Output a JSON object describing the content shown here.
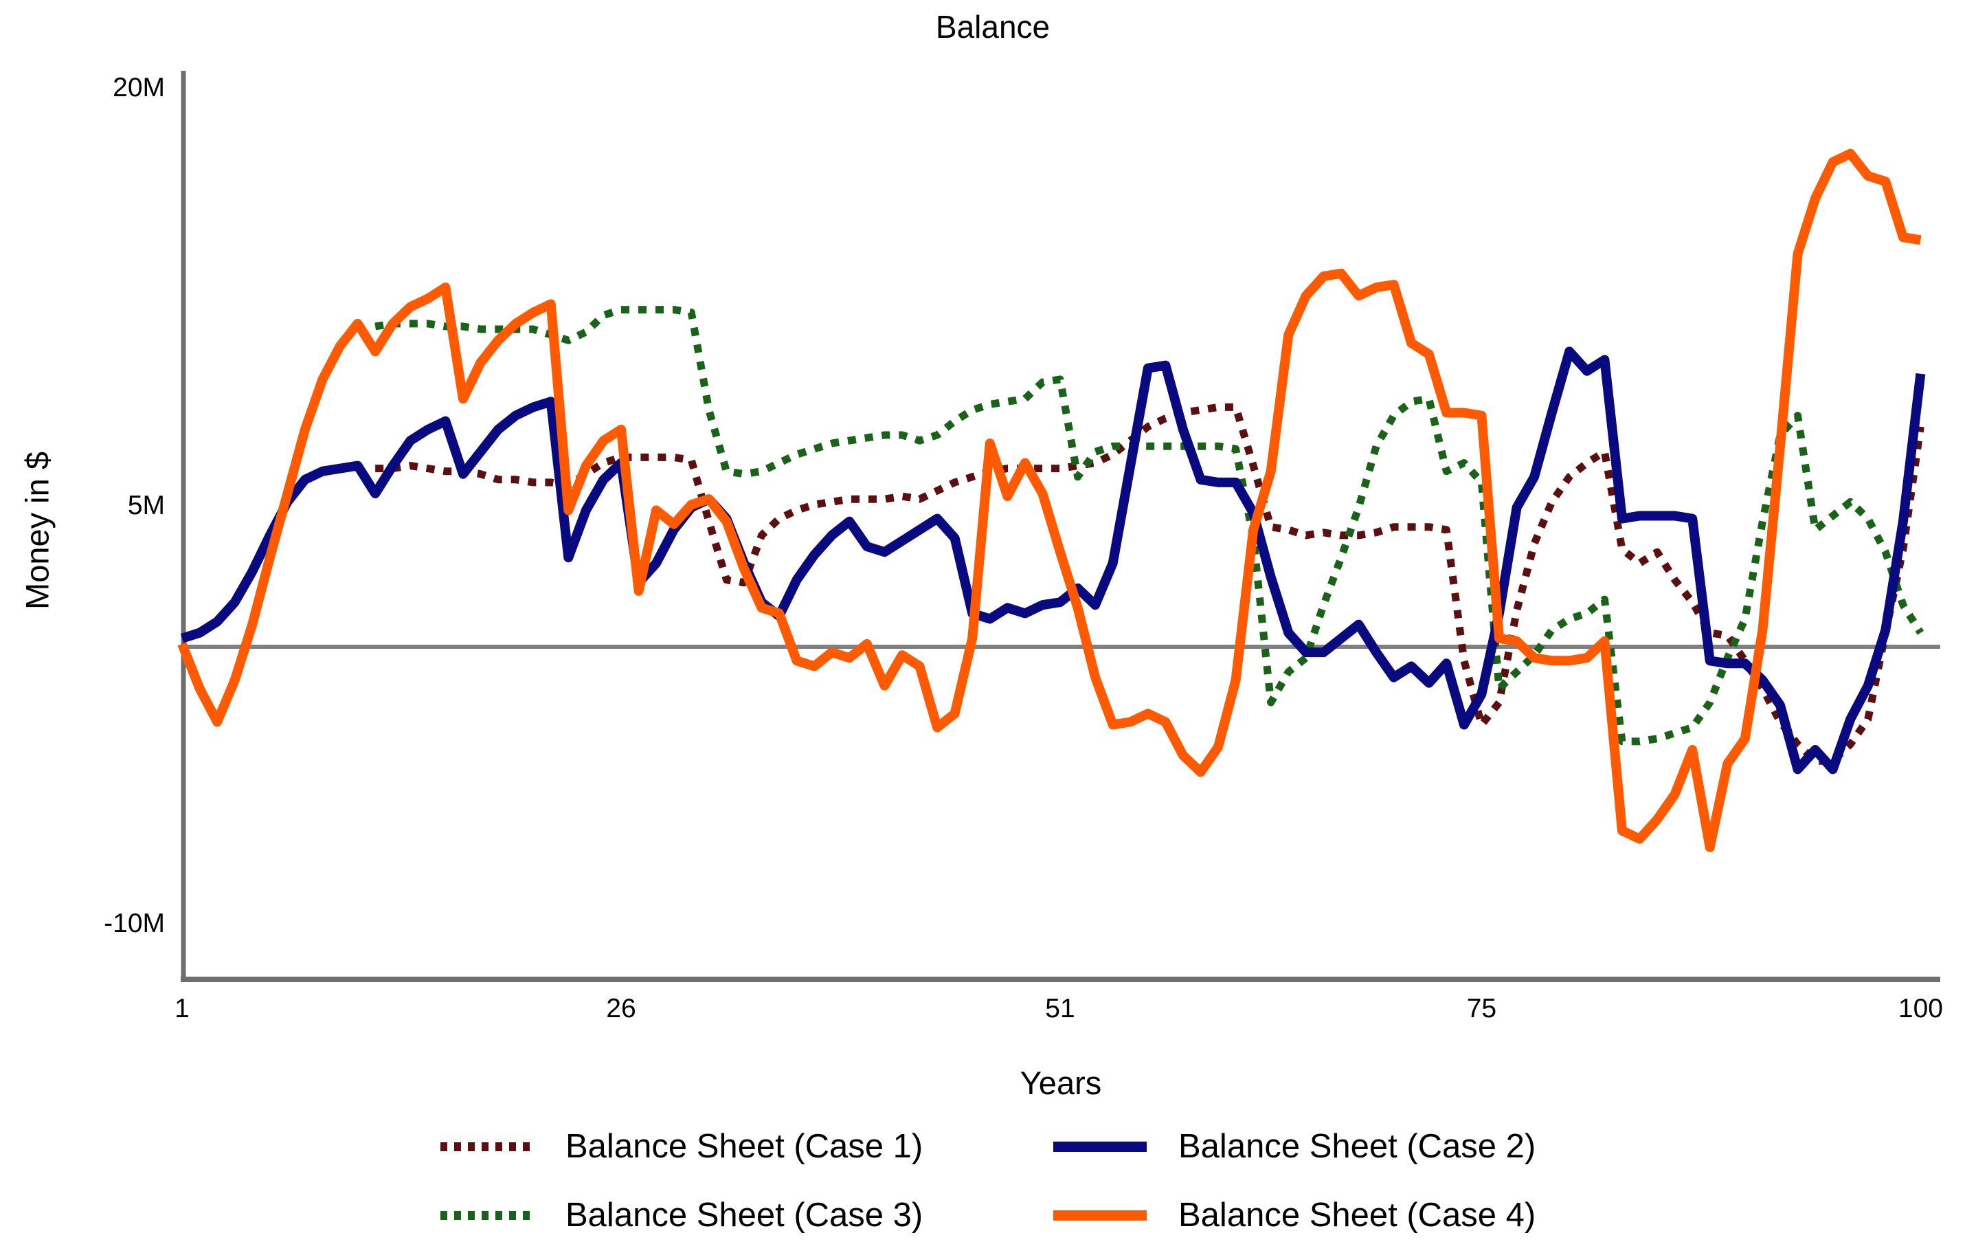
{
  "title": "Balance",
  "colors": {
    "axis": "#6e6e6e",
    "zero_line": "#7f7f7f",
    "background": "#ffffff",
    "case1": "#5c0f0f",
    "case2": "#0a0a80",
    "case3": "#186318",
    "case4": "#ff5a00"
  },
  "chart_data": {
    "type": "line",
    "title": "Balance",
    "xlabel": "Years",
    "ylabel": "Money in $",
    "x_range": [
      1,
      100
    ],
    "y_range": [
      -11.9,
      20.7
    ],
    "y_unit": "M (millions of $)",
    "grid": false,
    "zero_line": true,
    "legend_position": "bottom",
    "x_ticks": [
      {
        "label": "1",
        "value": 1
      },
      {
        "label": "26",
        "value": 26
      },
      {
        "label": "51",
        "value": 51
      },
      {
        "label": "75",
        "value": 75
      },
      {
        "label": "100",
        "value": 100
      }
    ],
    "y_ticks": [
      {
        "label": "20M",
        "value": 20
      },
      {
        "label": "5M",
        "value": 5
      },
      {
        "label": "-10M",
        "value": -10
      }
    ],
    "x": [
      1,
      2,
      3,
      4,
      5,
      6,
      7,
      8,
      9,
      10,
      11,
      12,
      13,
      14,
      15,
      16,
      17,
      18,
      19,
      20,
      21,
      22,
      23,
      24,
      25,
      26,
      27,
      28,
      29,
      30,
      31,
      32,
      33,
      34,
      35,
      36,
      37,
      38,
      39,
      40,
      41,
      42,
      43,
      44,
      45,
      46,
      47,
      48,
      49,
      50,
      51,
      52,
      53,
      54,
      55,
      56,
      57,
      58,
      59,
      60,
      61,
      62,
      63,
      64,
      65,
      66,
      67,
      68,
      69,
      70,
      71,
      72,
      73,
      74,
      75,
      76,
      77,
      78,
      79,
      80,
      81,
      82,
      83,
      84,
      85,
      86,
      87,
      88,
      89,
      90,
      91,
      92,
      93,
      94,
      95,
      96,
      97,
      98,
      99,
      100
    ],
    "series": [
      {
        "name": "Balance Sheet (Case 1)",
        "color": "#5c0f0f",
        "style": "dotted",
        "values": [
          null,
          null,
          null,
          null,
          null,
          null,
          null,
          null,
          null,
          null,
          null,
          6.4,
          6.4,
          6.5,
          6.4,
          6.3,
          6.3,
          6.2,
          6.0,
          6.0,
          5.9,
          5.9,
          5.8,
          6.2,
          6.6,
          6.8,
          6.8,
          6.8,
          6.8,
          6.7,
          4.5,
          2.4,
          2.3,
          4.0,
          4.6,
          4.9,
          5.1,
          5.2,
          5.3,
          5.3,
          5.3,
          5.4,
          5.3,
          5.6,
          5.9,
          6.1,
          6.3,
          6.4,
          6.4,
          6.4,
          6.4,
          6.5,
          6.6,
          6.9,
          7.4,
          7.9,
          8.2,
          8.4,
          8.5,
          8.6,
          8.6,
          6.5,
          4.3,
          4.2,
          4.0,
          4.1,
          4.0,
          4.0,
          4.1,
          4.3,
          4.3,
          4.3,
          4.2,
          -0.5,
          -2.8,
          -2.0,
          1.3,
          3.7,
          5.2,
          6.1,
          6.6,
          7.0,
          3.5,
          3.0,
          3.4,
          2.4,
          1.6,
          0.5,
          0.4,
          -0.5,
          -1.5,
          -2.7,
          -3.5,
          -4.1,
          -4.1,
          -3.5,
          -2.6,
          0.5,
          3.5,
          7.9
        ]
      },
      {
        "name": "Balance Sheet (Case 2)",
        "color": "#0a0a80",
        "style": "solid",
        "values": [
          0.3,
          0.5,
          0.9,
          1.6,
          2.7,
          4.0,
          5.2,
          6.0,
          6.3,
          6.4,
          6.5,
          5.5,
          6.5,
          7.4,
          7.8,
          8.1,
          6.2,
          7.0,
          7.8,
          8.3,
          8.6,
          8.8,
          3.2,
          4.9,
          6.0,
          6.6,
          2.3,
          3.0,
          4.2,
          5.0,
          5.3,
          4.6,
          3.0,
          1.6,
          1.1,
          2.4,
          3.3,
          4.0,
          4.5,
          3.6,
          3.4,
          3.8,
          4.2,
          4.6,
          3.9,
          1.2,
          1.0,
          1.4,
          1.2,
          1.5,
          1.6,
          2.1,
          1.5,
          3.0,
          6.5,
          10.0,
          10.1,
          7.8,
          6.0,
          5.9,
          5.9,
          4.8,
          2.5,
          0.5,
          -0.2,
          -0.2,
          0.3,
          0.8,
          -0.2,
          -1.1,
          -0.7,
          -1.3,
          -0.6,
          -2.8,
          -1.7,
          1.2,
          5.0,
          6.1,
          8.4,
          10.6,
          9.9,
          10.3,
          4.6,
          4.7,
          4.7,
          4.7,
          4.6,
          -0.5,
          -0.6,
          -0.6,
          -1.2,
          -2.1,
          -4.4,
          -3.7,
          -4.4,
          -2.6,
          -1.4,
          0.6,
          4.5,
          9.8
        ]
      },
      {
        "name": "Balance Sheet (Case 3)",
        "color": "#186318",
        "style": "dotted",
        "values": [
          null,
          null,
          null,
          null,
          null,
          null,
          null,
          null,
          null,
          null,
          null,
          11.5,
          11.6,
          11.6,
          11.6,
          11.5,
          11.5,
          11.4,
          11.4,
          11.4,
          11.4,
          11.2,
          11.0,
          11.3,
          11.9,
          12.1,
          12.1,
          12.1,
          12.1,
          12.0,
          8.5,
          6.3,
          6.2,
          6.3,
          6.6,
          6.9,
          7.1,
          7.3,
          7.4,
          7.5,
          7.6,
          7.6,
          7.4,
          7.6,
          8.1,
          8.5,
          8.7,
          8.8,
          8.9,
          9.5,
          9.6,
          6.1,
          7.0,
          7.2,
          7.2,
          7.2,
          7.2,
          7.2,
          7.2,
          7.2,
          7.1,
          3.9,
          -2.0,
          -0.9,
          -0.4,
          1.5,
          3.2,
          5.0,
          7.2,
          8.3,
          8.8,
          8.9,
          6.3,
          6.6,
          5.9,
          -1.5,
          -0.9,
          -0.3,
          0.6,
          1.0,
          1.2,
          1.7,
          -3.4,
          -3.4,
          -3.3,
          -3.1,
          -2.9,
          -2.0,
          -0.4,
          1.0,
          4.5,
          7.6,
          8.3,
          4.2,
          4.7,
          5.2,
          4.6,
          3.4,
          1.5,
          0.5
        ]
      },
      {
        "name": "Balance Sheet (Case 4)",
        "color": "#ff5a00",
        "style": "solid",
        "values": [
          0.1,
          -1.5,
          -2.7,
          -1.2,
          0.8,
          3.2,
          5.5,
          7.8,
          9.6,
          10.8,
          11.6,
          10.6,
          11.6,
          12.2,
          12.5,
          12.9,
          8.9,
          10.2,
          11.0,
          11.6,
          12.0,
          12.3,
          4.9,
          6.5,
          7.4,
          7.8,
          2.0,
          4.9,
          4.4,
          5.1,
          5.3,
          4.5,
          2.8,
          1.4,
          1.2,
          -0.5,
          -0.7,
          -0.2,
          -0.4,
          0.1,
          -1.4,
          -0.3,
          -0.7,
          -2.9,
          -2.4,
          0.3,
          7.3,
          5.4,
          6.6,
          5.5,
          3.4,
          1.4,
          -1.1,
          -2.8,
          -2.7,
          -2.4,
          -2.7,
          -3.9,
          -4.5,
          -3.6,
          -1.2,
          4.2,
          6.3,
          11.2,
          12.6,
          13.3,
          13.4,
          12.6,
          12.9,
          13.0,
          10.9,
          10.5,
          8.4,
          8.4,
          8.3,
          0.3,
          0.2,
          -0.4,
          -0.5,
          -0.5,
          -0.4,
          0.2,
          -6.6,
          -6.9,
          -6.2,
          -5.3,
          -3.7,
          -7.2,
          -4.2,
          -3.3,
          0.6,
          7.2,
          14.1,
          16.1,
          17.4,
          17.7,
          16.9,
          16.7,
          14.7,
          14.6
        ]
      }
    ]
  },
  "legend": {
    "items": [
      {
        "label": "Balance Sheet (Case 1)"
      },
      {
        "label": "Balance Sheet (Case 2)"
      },
      {
        "label": "Balance Sheet (Case 3)"
      },
      {
        "label": "Balance Sheet (Case 4)"
      }
    ]
  }
}
